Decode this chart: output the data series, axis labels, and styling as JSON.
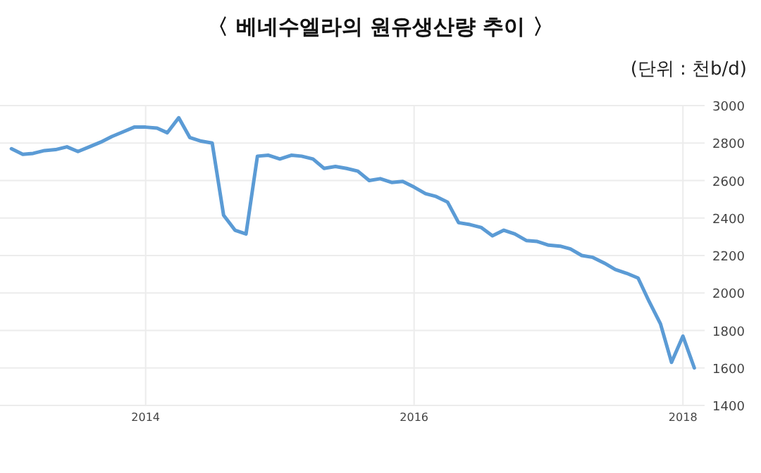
{
  "chart_data": {
    "type": "line",
    "title": "〈 베네수엘라의 원유생산량 추이 〉",
    "subtitle": "(단위 : 천b/d)",
    "x": [
      "2013-01",
      "2013-02",
      "2013-03",
      "2013-04",
      "2013-05",
      "2013-06",
      "2013-07",
      "2013-08",
      "2013-09",
      "2013-10",
      "2013-11",
      "2013-12",
      "2014-01",
      "2014-02",
      "2014-03",
      "2014-04",
      "2014-05",
      "2014-06",
      "2014-07",
      "2014-08",
      "2014-09",
      "2014-10",
      "2014-11",
      "2014-12",
      "2015-01",
      "2015-02",
      "2015-03",
      "2015-04",
      "2015-05",
      "2015-06",
      "2015-07",
      "2015-08",
      "2015-09",
      "2015-10",
      "2015-11",
      "2015-12",
      "2016-01",
      "2016-02",
      "2016-03",
      "2016-04",
      "2016-05",
      "2016-06",
      "2016-07",
      "2016-08",
      "2016-09",
      "2016-10",
      "2016-11",
      "2016-12",
      "2017-01",
      "2017-02",
      "2017-03",
      "2017-04",
      "2017-05",
      "2017-06",
      "2017-07",
      "2017-08",
      "2017-09",
      "2017-10",
      "2017-11",
      "2017-12",
      "2018-01",
      "2018-02"
    ],
    "series": [
      {
        "color": "#5b9bd5",
        "values": [
          2770,
          2740,
          2745,
          2760,
          2765,
          2780,
          2755,
          2780,
          2805,
          2835,
          2860,
          2885,
          2885,
          2880,
          2855,
          2935,
          2830,
          2810,
          2800,
          2415,
          2335,
          2315,
          2730,
          2735,
          2715,
          2735,
          2730,
          2715,
          2665,
          2675,
          2665,
          2650,
          2600,
          2610,
          2590,
          2595,
          2565,
          2530,
          2515,
          2485,
          2375,
          2365,
          2350,
          2305,
          2335,
          2315,
          2280,
          2275,
          2255,
          2250,
          2235,
          2200,
          2190,
          2160,
          2125,
          2105,
          2080,
          1955,
          1835,
          1630,
          1770,
          1600
        ]
      }
    ],
    "xlim": [
      "2012-12",
      "2018-03"
    ],
    "xticks": [
      {
        "value": "2014-01",
        "label": "2014"
      },
      {
        "value": "2016-01",
        "label": "2016"
      },
      {
        "value": "2018-01",
        "label": "2018"
      }
    ],
    "ylim": [
      1400,
      3000
    ],
    "yticks": [
      1400,
      1600,
      1800,
      2000,
      2200,
      2400,
      2600,
      2800,
      3000
    ],
    "grid": true,
    "marker": "none",
    "line_style": "solid"
  }
}
